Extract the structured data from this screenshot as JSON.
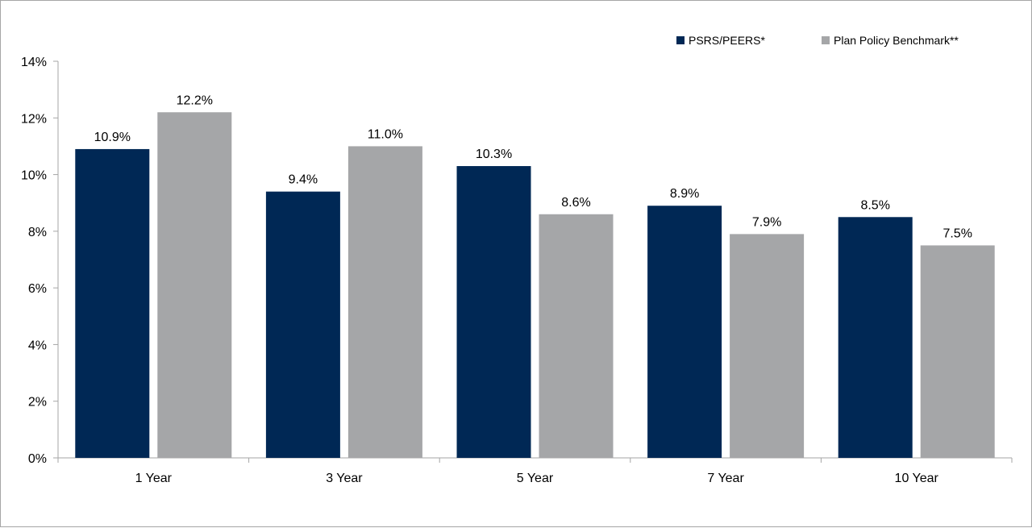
{
  "chart_data": {
    "type": "bar",
    "title": "",
    "xlabel": "",
    "ylabel": "",
    "categories": [
      "1 Year",
      "3 Year",
      "5 Year",
      "7 Year",
      "10 Year"
    ],
    "series": [
      {
        "name": "PSRS/PEERS*",
        "color": "#002855",
        "values": [
          10.9,
          9.4,
          10.3,
          8.9,
          8.5
        ],
        "labels": [
          "10.9%",
          "9.4%",
          "10.3%",
          "8.9%",
          "8.5%"
        ]
      },
      {
        "name": "Plan Policy Benchmark**",
        "color": "#a5a6a8",
        "values": [
          12.2,
          11.0,
          8.6,
          7.9,
          7.5
        ],
        "labels": [
          "12.2%",
          "11.0%",
          "8.6%",
          "7.9%",
          "7.5%"
        ]
      }
    ],
    "ylim": [
      0,
      14
    ],
    "yticks": [
      0,
      2,
      4,
      6,
      8,
      10,
      12,
      14
    ],
    "ytick_labels": [
      "0%",
      "2%",
      "4%",
      "6%",
      "8%",
      "10%",
      "12%",
      "14%"
    ],
    "grid": false,
    "legend": {
      "position": "top-right"
    }
  }
}
